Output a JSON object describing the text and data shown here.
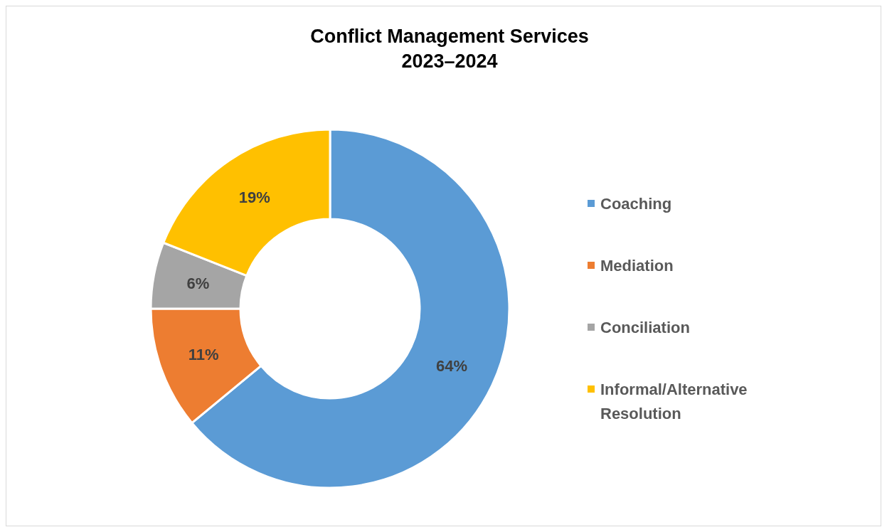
{
  "chart_data": {
    "type": "donut",
    "title": "Conflict Management Services\n2023–2024",
    "categories": [
      "Coaching",
      "Mediation",
      "Conciliation",
      "Informal/Alternative Resolution"
    ],
    "values": [
      64,
      11,
      6,
      19
    ],
    "colors": [
      "#5b9bd5",
      "#ed7d31",
      "#a5a5a5",
      "#ffc000"
    ],
    "value_labels": [
      "64%",
      "11%",
      "6%",
      "19%"
    ],
    "legend": "right"
  }
}
